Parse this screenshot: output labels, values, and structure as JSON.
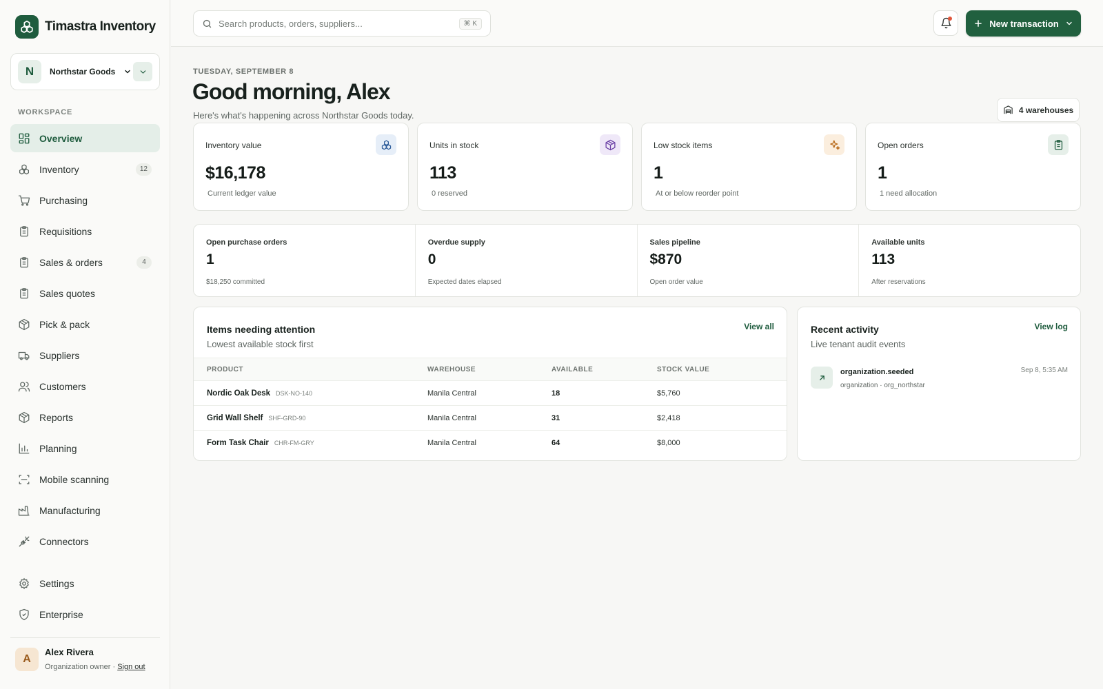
{
  "brand": {
    "name": "Timastra Inventory"
  },
  "org": {
    "initial": "N",
    "name": "Northstar Goods"
  },
  "sidebar": {
    "section_label": "WORKSPACE",
    "items": [
      {
        "label": "Overview",
        "icon": "grid-icon",
        "active": true,
        "badge": ""
      },
      {
        "label": "Inventory",
        "icon": "boxes-icon",
        "badge": "12"
      },
      {
        "label": "Purchasing",
        "icon": "cart-icon",
        "badge": ""
      },
      {
        "label": "Requisitions",
        "icon": "clipboard-icon",
        "badge": ""
      },
      {
        "label": "Sales & orders",
        "icon": "clipboard-icon",
        "badge": "4"
      },
      {
        "label": "Sales quotes",
        "icon": "clipboard-icon",
        "badge": ""
      },
      {
        "label": "Pick & pack",
        "icon": "package-icon",
        "badge": ""
      },
      {
        "label": "Suppliers",
        "icon": "truck-icon",
        "badge": ""
      },
      {
        "label": "Customers",
        "icon": "users-icon",
        "badge": ""
      },
      {
        "label": "Reports",
        "icon": "package-icon",
        "badge": ""
      },
      {
        "label": "Planning",
        "icon": "bar-chart-icon",
        "badge": ""
      },
      {
        "label": "Mobile scanning",
        "icon": "scan-icon",
        "badge": ""
      },
      {
        "label": "Manufacturing",
        "icon": "factory-icon",
        "badge": ""
      },
      {
        "label": "Connectors",
        "icon": "plug-icon",
        "badge": ""
      }
    ],
    "bottom_items": [
      {
        "label": "Settings",
        "icon": "gear-icon"
      },
      {
        "label": "Enterprise",
        "icon": "shield-icon"
      }
    ]
  },
  "user": {
    "initial": "A",
    "name": "Alex Rivera",
    "role": "Organization owner",
    "separator": "·",
    "signout": "Sign out"
  },
  "topbar": {
    "search_placeholder": "Search products, orders, suppliers...",
    "shortcut": "⌘ K",
    "new_transaction": "New transaction"
  },
  "header": {
    "date": "TUESDAY, SEPTEMBER 8",
    "greeting": "Good morning, Alex",
    "subtitle": "Here's what's happening across Northstar Goods today.",
    "warehouses": "4 warehouses"
  },
  "kpis": [
    {
      "label": "Inventory value",
      "value": "$16,178",
      "sub": "Current ledger value",
      "icon": "boxes-icon",
      "color": "#e6eef8",
      "icon_color": "#2d5c9a"
    },
    {
      "label": "Units in stock",
      "value": "113",
      "sub": "0 reserved",
      "icon": "cube-icon",
      "color": "#efe8f8",
      "icon_color": "#6a3fa5"
    },
    {
      "label": "Low stock items",
      "value": "1",
      "sub": "At or below reorder point",
      "icon": "sparkle-icon",
      "color": "#fbeede",
      "icon_color": "#b86a1a"
    },
    {
      "label": "Open orders",
      "value": "1",
      "sub": "1 need allocation",
      "icon": "clipboard-icon",
      "color": "#e6efe9",
      "icon_color": "#1f5c3e"
    }
  ],
  "stats": [
    {
      "label": "Open purchase orders",
      "value": "1",
      "sub": "$18,250 committed"
    },
    {
      "label": "Overdue supply",
      "value": "0",
      "sub": "Expected dates elapsed"
    },
    {
      "label": "Sales pipeline",
      "value": "$870",
      "sub": "Open order value"
    },
    {
      "label": "Available units",
      "value": "113",
      "sub": "After reservations"
    }
  ],
  "attention": {
    "title": "Items needing attention",
    "subtitle": "Lowest available stock first",
    "link": "View all",
    "columns": [
      "PRODUCT",
      "WAREHOUSE",
      "AVAILABLE",
      "STOCK VALUE"
    ],
    "rows": [
      {
        "name": "Nordic Oak Desk",
        "sku": "DSK-NO-140",
        "warehouse": "Manila Central",
        "available": "18",
        "value": "$5,760"
      },
      {
        "name": "Grid Wall Shelf",
        "sku": "SHF-GRD-90",
        "warehouse": "Manila Central",
        "available": "31",
        "value": "$2,418"
      },
      {
        "name": "Form Task Chair",
        "sku": "CHR-FM-GRY",
        "warehouse": "Manila Central",
        "available": "64",
        "value": "$8,000"
      }
    ]
  },
  "activity": {
    "title": "Recent activity",
    "subtitle": "Live tenant audit events",
    "link": "View log",
    "events": [
      {
        "title": "organization.seeded",
        "meta": "organization · org_northstar",
        "time": "Sep 8, 5:35 AM"
      }
    ]
  },
  "colors": {
    "accent": "#21603f",
    "accent_soft": "#e4eee8",
    "notification": "#e0553a"
  }
}
